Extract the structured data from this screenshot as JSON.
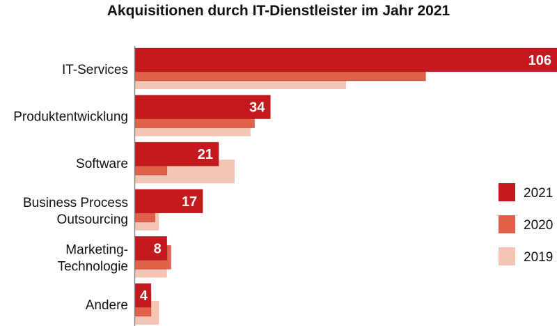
{
  "chart_data": {
    "type": "bar",
    "orientation": "horizontal",
    "title": "Akquisitionen durch IT-Dienstleister im Jahr 2021",
    "categories": [
      [
        "IT-Services"
      ],
      [
        "Produktentwicklung"
      ],
      [
        "Software"
      ],
      [
        "Business Process",
        "Outsourcing"
      ],
      [
        "Marketing-",
        "Technologie"
      ],
      [
        "Andere"
      ]
    ],
    "series": [
      {
        "name": "2021",
        "color": "#c41a1f",
        "values": [
          106,
          34,
          21,
          17,
          8,
          4
        ]
      },
      {
        "name": "2020",
        "color": "#e0604a",
        "values": [
          73,
          30,
          8,
          5,
          9,
          4
        ]
      },
      {
        "name": "2019",
        "color": "#f4c4b4",
        "values": [
          53,
          29,
          25,
          6,
          8,
          6
        ]
      }
    ],
    "data_labels_series": "2021",
    "xlim": [
      0,
      106
    ],
    "legend_position": "right"
  }
}
